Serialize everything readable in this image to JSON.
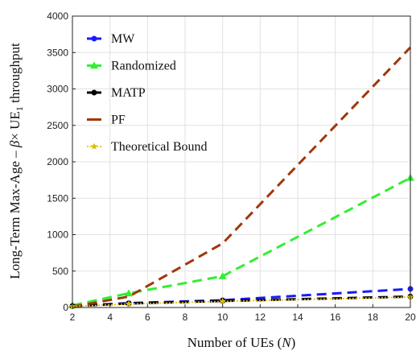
{
  "chart_data": {
    "type": "line",
    "title": "",
    "xlabel_prefix": "Number of UEs (",
    "xlabel_var": "N",
    "xlabel_suffix": ")",
    "ylabel_prefix": "Long-Term Max-Age – ",
    "ylabel_beta": "β",
    "ylabel_mid": "× UE",
    "ylabel_sub": "1",
    "ylabel_suffix": " throughput",
    "xlim": [
      2,
      20
    ],
    "ylim": [
      0,
      4000
    ],
    "xticks": [
      2,
      4,
      6,
      8,
      10,
      12,
      14,
      16,
      18,
      20
    ],
    "yticks": [
      0,
      500,
      1000,
      1500,
      2000,
      2500,
      3000,
      3500,
      4000
    ],
    "grid": true,
    "legend_position": "top-left",
    "x": [
      2,
      5,
      10,
      20
    ],
    "series": [
      {
        "name": "MW",
        "color": "#1a1aff",
        "marker": "circle",
        "dash": "12,7",
        "values": [
          20,
          60,
          100,
          255
        ]
      },
      {
        "name": "Randomized",
        "color": "#33ee33",
        "marker": "triangle",
        "dash": "12,7",
        "values": [
          30,
          195,
          430,
          1780
        ]
      },
      {
        "name": "MATP",
        "color": "#000000",
        "marker": "circle",
        "dash": "12,7",
        "values": [
          20,
          55,
          90,
          150
        ]
      },
      {
        "name": "PF",
        "color": "#a0380a",
        "marker": "none",
        "dash": "12,7",
        "values": [
          10,
          150,
          880,
          3570
        ]
      },
      {
        "name": "Theoretical Bound",
        "color": "#ddbb00",
        "marker": "star",
        "dash": "2,2",
        "values": [
          15,
          50,
          85,
          145
        ]
      }
    ]
  }
}
